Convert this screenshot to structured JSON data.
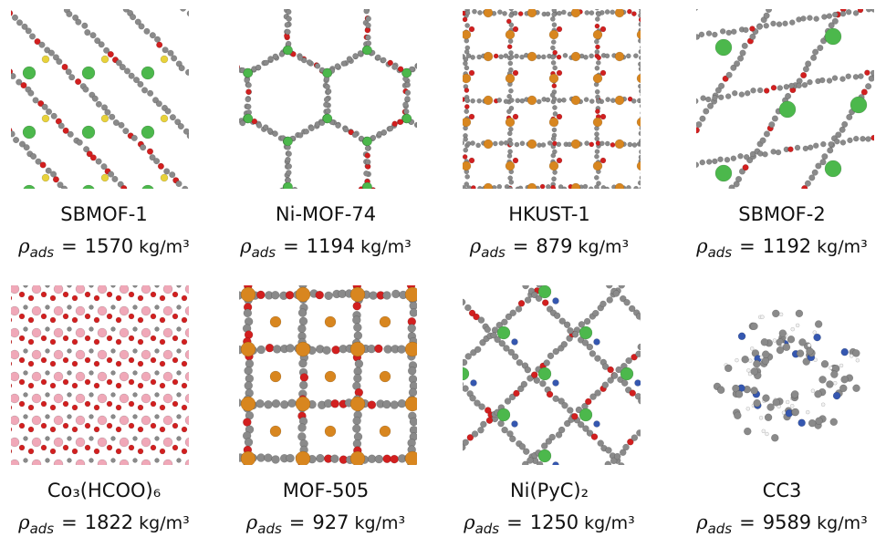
{
  "density_symbol": "ρ",
  "density_symbol_sub": "ads",
  "relation": "=",
  "density_unit": "kg/m³",
  "panels": [
    {
      "name": "SBMOF-1",
      "density": 1570
    },
    {
      "name": "Ni-MOF-74",
      "density": 1194
    },
    {
      "name": "HKUST-1",
      "density": 879
    },
    {
      "name": "SBMOF-2",
      "density": 1192
    },
    {
      "name": "Co₃(HCOO)₆",
      "density": 1822
    },
    {
      "name": "MOF-505",
      "density": 927
    },
    {
      "name": "Ni(PyC)₂",
      "density": 1250
    },
    {
      "name": "CC3",
      "density": 9589
    }
  ]
}
